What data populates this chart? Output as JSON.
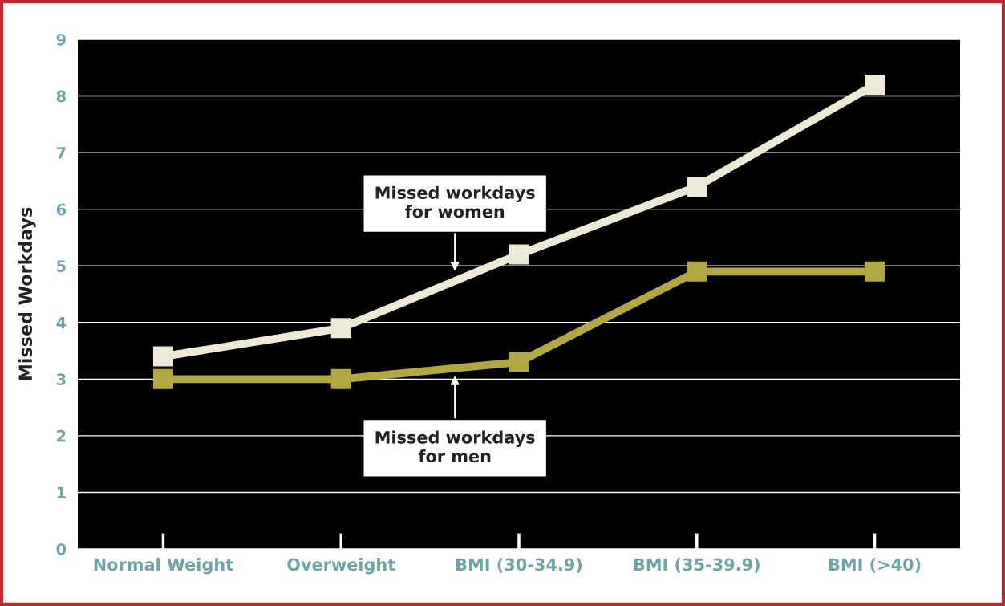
{
  "chart_data": {
    "type": "line",
    "ylabel": "Missed Workdays",
    "categories": [
      "Normal Weight",
      "Overweight",
      "BMI (30-34.9)",
      "BMI (35-39.9)",
      "BMI (>40)"
    ],
    "series": [
      {
        "name": "Missed workdays\nfor women",
        "color": "#ece9d6",
        "values": [
          3.4,
          3.9,
          5.2,
          6.4,
          8.2
        ]
      },
      {
        "name": "Missed workdays\nfor men",
        "color": "#b1a743",
        "values": [
          3.0,
          3.0,
          3.3,
          4.9,
          4.9
        ]
      }
    ],
    "ylim": [
      0,
      9
    ],
    "yticks": [
      0,
      1,
      2,
      3,
      4,
      5,
      6,
      7,
      8,
      9
    ],
    "grid": "y",
    "legend": false,
    "marker": "square",
    "line_style": "solid"
  }
}
